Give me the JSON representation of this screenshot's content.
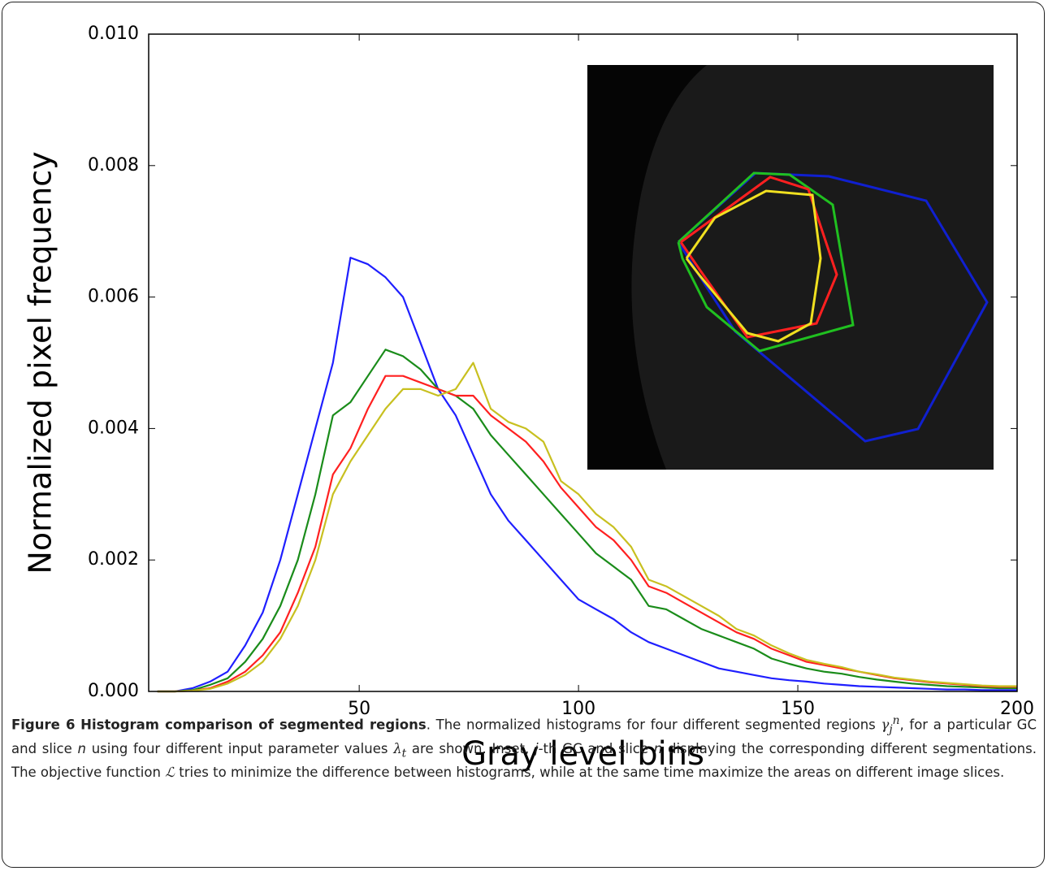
{
  "chart_data": {
    "type": "line",
    "xlabel": "Gray level bins",
    "ylabel": "Normalized pixel frequency",
    "xlim": [
      2,
      200
    ],
    "ylim": [
      0,
      0.01
    ],
    "xticks": [
      50,
      100,
      150,
      200
    ],
    "yticks": [
      {
        "value": 0,
        "label": "0.000"
      },
      {
        "value": 0.002,
        "label": "0.002"
      },
      {
        "value": 0.004,
        "label": "0.004"
      },
      {
        "value": 0.006,
        "label": "0.006"
      },
      {
        "value": 0.008,
        "label": "0.008"
      },
      {
        "value": 0.01,
        "label": "0.010"
      }
    ],
    "x": [
      4,
      8,
      12,
      16,
      20,
      24,
      28,
      32,
      36,
      40,
      44,
      48,
      52,
      56,
      60,
      64,
      68,
      72,
      76,
      80,
      84,
      88,
      92,
      96,
      100,
      104,
      108,
      112,
      116,
      120,
      124,
      128,
      132,
      136,
      140,
      144,
      148,
      152,
      156,
      160,
      164,
      168,
      172,
      176,
      180,
      184,
      188,
      192,
      196,
      200
    ],
    "series": [
      {
        "color": "#1f1fff",
        "values": [
          0,
          0,
          5e-05,
          0.00015,
          0.0003,
          0.0007,
          0.0012,
          0.002,
          0.003,
          0.004,
          0.005,
          0.0066,
          0.0065,
          0.0063,
          0.006,
          0.0053,
          0.0046,
          0.0042,
          0.0036,
          0.003,
          0.0026,
          0.0023,
          0.002,
          0.0017,
          0.0014,
          0.00125,
          0.0011,
          0.0009,
          0.00075,
          0.00065,
          0.00055,
          0.00045,
          0.00035,
          0.0003,
          0.00025,
          0.0002,
          0.00017,
          0.00015,
          0.00012,
          0.0001,
          8e-05,
          7e-05,
          6e-05,
          5e-05,
          4e-05,
          3e-05,
          3e-05,
          2e-05,
          2e-05,
          2e-05
        ]
      },
      {
        "color": "#1a8c1a",
        "values": [
          0,
          0,
          2e-05,
          0.0001,
          0.0002,
          0.00045,
          0.0008,
          0.0013,
          0.002,
          0.003,
          0.0042,
          0.0044,
          0.0048,
          0.0052,
          0.0051,
          0.0049,
          0.0046,
          0.0045,
          0.0043,
          0.0039,
          0.0036,
          0.0033,
          0.003,
          0.0027,
          0.0024,
          0.0021,
          0.0019,
          0.0017,
          0.0013,
          0.00125,
          0.0011,
          0.00095,
          0.00085,
          0.00075,
          0.00065,
          0.0005,
          0.00042,
          0.00035,
          0.0003,
          0.00027,
          0.00022,
          0.00018,
          0.00015,
          0.00012,
          0.0001,
          8e-05,
          7e-05,
          6e-05,
          5e-05,
          5e-05
        ]
      },
      {
        "color": "#ff2020",
        "values": [
          0,
          0,
          1e-05,
          5e-05,
          0.00015,
          0.0003,
          0.00055,
          0.0009,
          0.0015,
          0.0022,
          0.0033,
          0.0037,
          0.0043,
          0.0048,
          0.0048,
          0.0047,
          0.0046,
          0.0045,
          0.0045,
          0.0042,
          0.004,
          0.0038,
          0.0035,
          0.0031,
          0.0028,
          0.0025,
          0.0023,
          0.002,
          0.0016,
          0.0015,
          0.00135,
          0.0012,
          0.00105,
          0.0009,
          0.0008,
          0.00065,
          0.00055,
          0.00045,
          0.0004,
          0.00035,
          0.0003,
          0.00025,
          0.0002,
          0.00017,
          0.00014,
          0.00012,
          0.0001,
          8e-05,
          7e-05,
          7e-05
        ]
      },
      {
        "color": "#c8c020",
        "values": [
          0,
          0,
          1e-05,
          4e-05,
          0.00012,
          0.00025,
          0.00045,
          0.0008,
          0.0013,
          0.002,
          0.003,
          0.0035,
          0.0039,
          0.0043,
          0.0046,
          0.0046,
          0.0045,
          0.0046,
          0.005,
          0.0043,
          0.0041,
          0.004,
          0.0038,
          0.0032,
          0.003,
          0.0027,
          0.0025,
          0.0022,
          0.0017,
          0.0016,
          0.00145,
          0.0013,
          0.00115,
          0.00095,
          0.00085,
          0.0007,
          0.00058,
          0.00048,
          0.00042,
          0.00037,
          0.0003,
          0.00026,
          0.00021,
          0.00018,
          0.00015,
          0.00013,
          0.00011,
          9e-05,
          8e-05,
          8e-05
        ]
      }
    ]
  },
  "caption": {
    "label": "Figure 6",
    "title": "Histogram comparison of segmented regions",
    "parts": [
      ". The normalized histograms for four different segmented regions ",
      "γ",
      "j",
      "n",
      ", for a particular GC and slice ",
      "n",
      " using four different input parameter values ",
      "λ",
      "t",
      " are shown. Inset, ",
      "j",
      "-th GC and slice ",
      "n",
      " displaying the corresponding different segmentations. The objective function ",
      "ℒ",
      " tries to minimize the difference between histograms, while at the same time maximize the areas on different image slices."
    ]
  }
}
